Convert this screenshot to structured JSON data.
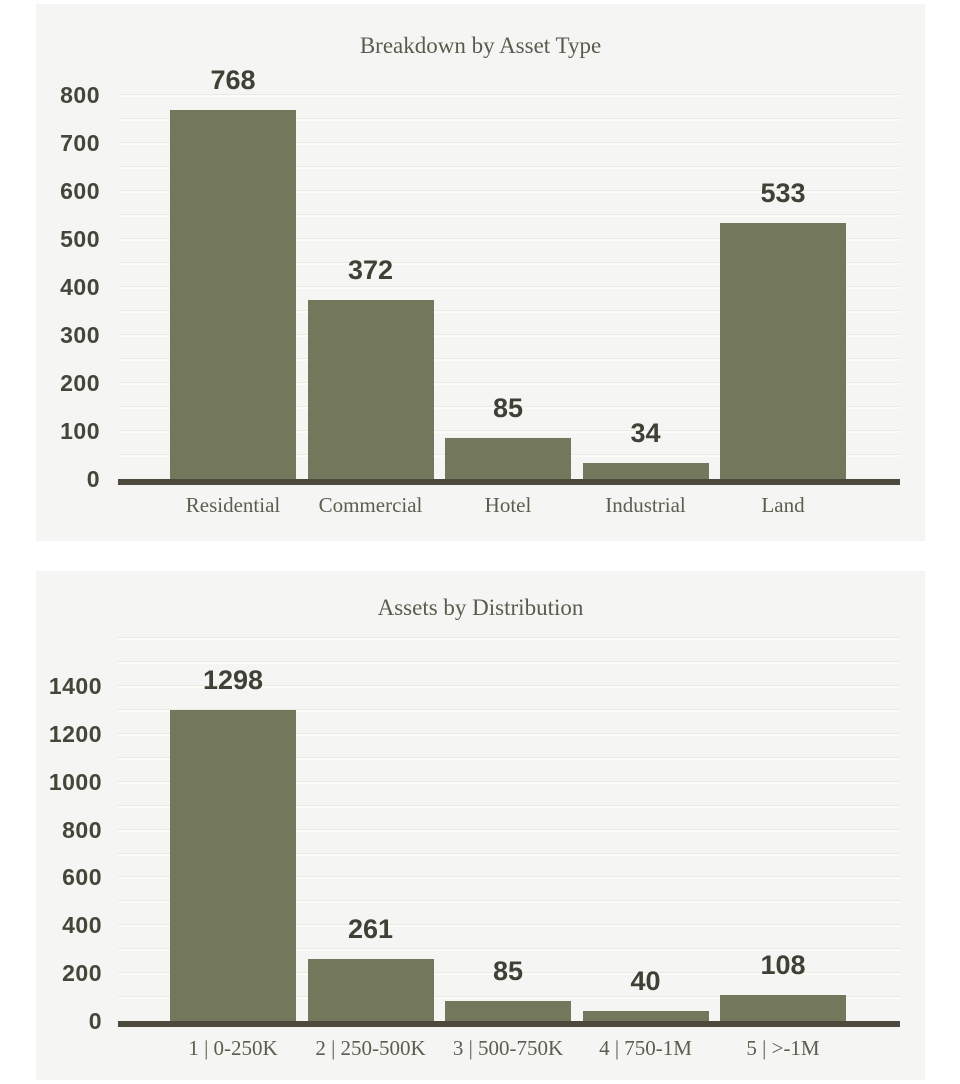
{
  "colors": {
    "page_background": "#ffffff",
    "panel_background": "#f5f6f3",
    "bar_fill": "#73775b",
    "axis_baseline": "#4b4a3d",
    "y_tick_label": "#45463a",
    "value_label": "#3f4136",
    "category_label": "#5b5d4e",
    "title": "#595b4d",
    "gridline": "#e9ece2"
  },
  "chart_data": [
    {
      "type": "bar",
      "title": "Breakdown by Asset Type",
      "categories": [
        "Residential",
        "Commercial",
        "Hotel",
        "Industrial",
        "Land"
      ],
      "values": [
        768,
        372,
        85,
        34,
        533
      ],
      "xlabel": "",
      "ylabel": "",
      "ylim": [
        0,
        800
      ],
      "ytick_step": 100,
      "gridline_step": 50,
      "grid_extent": 800,
      "grid": "on",
      "legend": "none"
    },
    {
      "type": "bar",
      "title": "Assets by Distribution",
      "categories": [
        "1 | 0-250K",
        "2 | 250-500K",
        "3 | 500-750K",
        "4 | 750-1M",
        "5 | >-1M"
      ],
      "values": [
        1298,
        261,
        85,
        40,
        108
      ],
      "xlabel": "",
      "ylabel": "",
      "ylim": [
        0,
        1400
      ],
      "ytick_step": 200,
      "gridline_step": 100,
      "grid_extent": 1600,
      "grid": "on",
      "legend": "none"
    }
  ]
}
